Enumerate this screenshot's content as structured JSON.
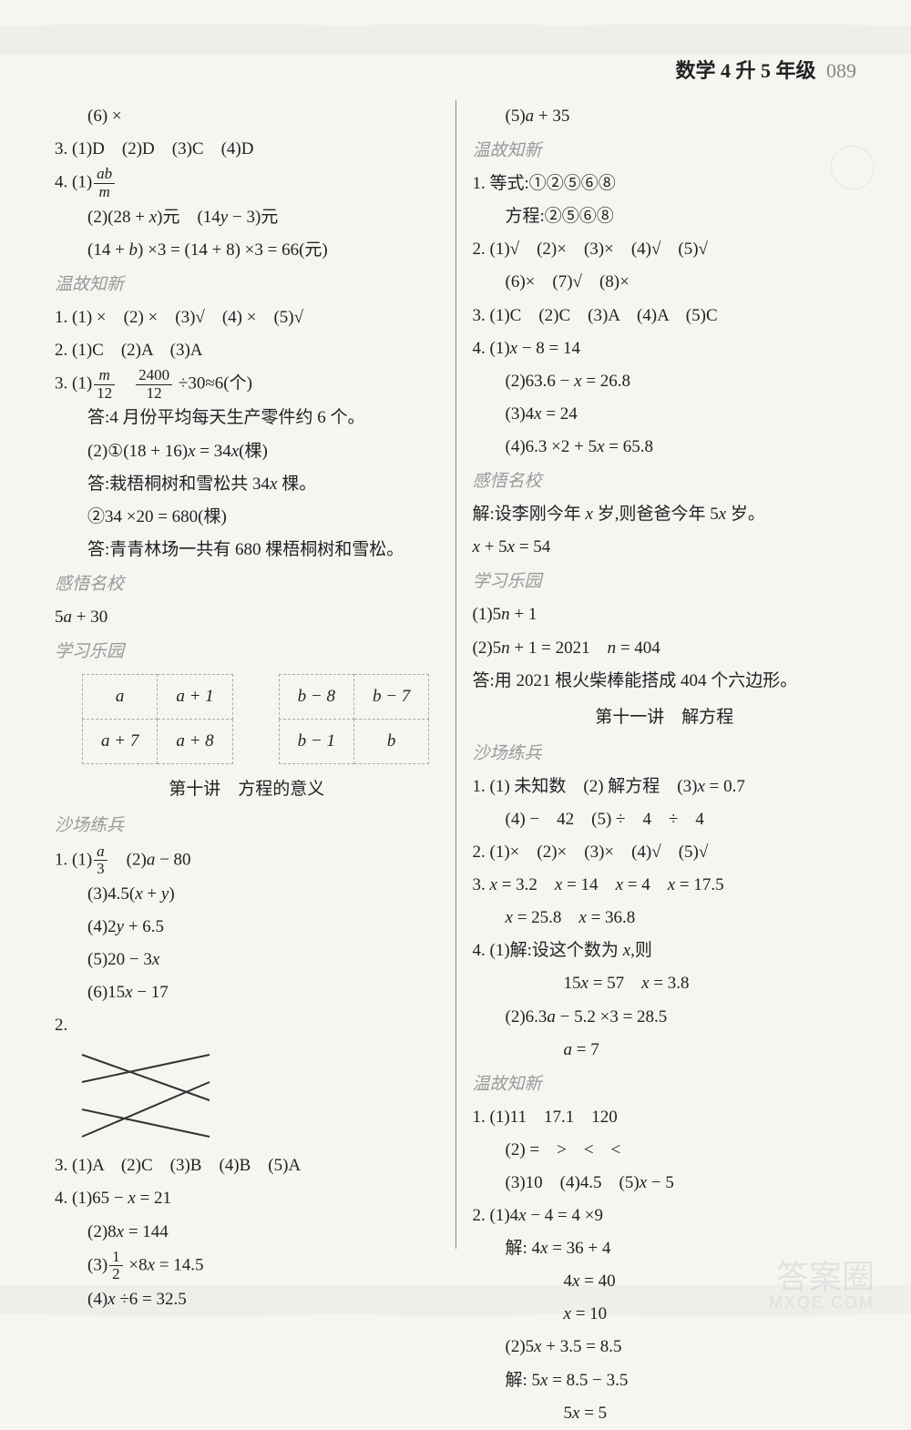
{
  "header": {
    "subject": "数学 4 升 5 年级",
    "page": "089"
  },
  "left": {
    "lines": [
      {
        "cls": "indent1",
        "html": "(6) ×"
      },
      {
        "cls": "",
        "html": "3. (1)D　(2)D　(3)C　(4)D"
      },
      {
        "cls": "",
        "html": "4. (1)<span class='frac'><span class='num it'>ab</span><span class='den it'>m</span></span>"
      },
      {
        "cls": "indent1",
        "html": "(2)(28 + <span class='it'>x</span>)元　(14<span class='it'>y</span> − 3)元"
      },
      {
        "cls": "indent1",
        "html": "(14 + <span class='it'>b</span>) ×3 = (14 + 8) ×3 = 66(元)"
      },
      {
        "cls": "section-title",
        "html": "温故知新"
      },
      {
        "cls": "",
        "html": "1. (1) ×　(2) ×　(3)√　(4) ×　(5)√"
      },
      {
        "cls": "",
        "html": "2. (1)C　(2)A　(3)A"
      },
      {
        "cls": "",
        "html": "3. (1)<span class='frac'><span class='num it'>m</span><span class='den'>12</span></span>　<span class='frac'><span class='num'>2400</span><span class='den'>12</span></span> ÷30≈6(个)"
      },
      {
        "cls": "indent1 kaiti",
        "html": "答:4 月份平均每天生产零件约 6 个。"
      },
      {
        "cls": "indent1",
        "html": "(2)①(18 + 16)<span class='it'>x</span> = 34<span class='it'>x</span>(棵)"
      },
      {
        "cls": "indent1 kaiti",
        "html": "答:栽梧桐树和雪松共 34<span class='it'>x</span> 棵。"
      },
      {
        "cls": "indent1",
        "html": "②34 ×20 = 680(棵)"
      },
      {
        "cls": "indent1 kaiti",
        "html": "答:青青林场一共有 680 棵梧桐树和雪松。"
      },
      {
        "cls": "section-title",
        "html": "感悟名校"
      },
      {
        "cls": "",
        "html": "5<span class='it'>a</span> + 30"
      },
      {
        "cls": "section-title",
        "html": "学习乐园"
      }
    ],
    "tableA": [
      [
        "a",
        "a + 1"
      ],
      [
        "a + 7",
        "a + 8"
      ]
    ],
    "tableB": [
      [
        "b − 8",
        "b − 7"
      ],
      [
        "b − 1",
        "b"
      ]
    ],
    "lesson10": "第十讲　方程的意义",
    "lines2": [
      {
        "cls": "section-title",
        "html": "沙场练兵"
      },
      {
        "cls": "",
        "html": "1. (1)<span class='frac'><span class='num it'>a</span><span class='den'>3</span></span>　(2)<span class='it'>a</span> − 80"
      },
      {
        "cls": "indent1",
        "html": "(3)4.5(<span class='it'>x</span> + <span class='it'>y</span>)"
      },
      {
        "cls": "indent1",
        "html": "(4)2<span class='it'>y</span> + 6.5"
      },
      {
        "cls": "indent1",
        "html": "(5)20 − 3<span class='it'>x</span>"
      },
      {
        "cls": "indent1",
        "html": "(6)15<span class='it'>x</span> − 17"
      },
      {
        "cls": "",
        "html": "2."
      }
    ],
    "match": {
      "width": 160,
      "height": 110,
      "lines": [
        [
          10,
          10,
          150,
          60
        ],
        [
          10,
          40,
          150,
          10
        ],
        [
          10,
          70,
          150,
          100
        ],
        [
          10,
          100,
          150,
          40
        ]
      ],
      "stroke": "#333"
    },
    "lines3": [
      {
        "cls": "",
        "html": "3. (1)A　(2)C　(3)B　(4)B　(5)A"
      },
      {
        "cls": "",
        "html": "4. (1)65 − <span class='it'>x</span> = 21"
      },
      {
        "cls": "indent1",
        "html": "(2)8<span class='it'>x</span> = 144"
      },
      {
        "cls": "indent1",
        "html": "(3)<span class='frac'><span class='num'>1</span><span class='den'>2</span></span> ×8<span class='it'>x</span> = 14.5"
      },
      {
        "cls": "indent1",
        "html": "(4)<span class='it'>x</span> ÷6 = 32.5"
      }
    ]
  },
  "right": {
    "lines": [
      {
        "cls": "indent1",
        "html": "(5)<span class='it'>a</span> + 35"
      },
      {
        "cls": "section-title",
        "html": "温故知新"
      },
      {
        "cls": "",
        "html": "1. 等式:①②⑤⑥⑧"
      },
      {
        "cls": "indent1",
        "html": "方程:②⑤⑥⑧"
      },
      {
        "cls": "",
        "html": "2. (1)√　(2)×　(3)×　(4)√　(5)√"
      },
      {
        "cls": "indent1",
        "html": "(6)×　(7)√　(8)×"
      },
      {
        "cls": "",
        "html": "3. (1)C　(2)C　(3)A　(4)A　(5)C"
      },
      {
        "cls": "",
        "html": "4. (1)<span class='it'>x</span> − 8 = 14"
      },
      {
        "cls": "indent1",
        "html": "(2)63.6 − <span class='it'>x</span> = 26.8"
      },
      {
        "cls": "indent1",
        "html": "(3)4<span class='it'>x</span> = 24"
      },
      {
        "cls": "indent1",
        "html": "(4)6.3 ×2 + 5<span class='it'>x</span> = 65.8"
      },
      {
        "cls": "section-title",
        "html": "感悟名校"
      },
      {
        "cls": "kaiti",
        "html": "解:设李刚今年 <span class='it'>x</span> 岁,则爸爸今年 5<span class='it'>x</span> 岁。"
      },
      {
        "cls": "",
        "html": "<span class='it'>x</span> + 5<span class='it'>x</span> = 54"
      },
      {
        "cls": "section-title",
        "html": "学习乐园"
      },
      {
        "cls": "",
        "html": "(1)5<span class='it'>n</span> + 1"
      },
      {
        "cls": "",
        "html": "(2)5<span class='it'>n</span> + 1 = 2021　<span class='it'>n</span> = 404"
      },
      {
        "cls": "kaiti",
        "html": "答:用 2021 根火柴棒能搭成 404 个六边形。"
      }
    ],
    "lesson11": "第十一讲　解方程",
    "lines2": [
      {
        "cls": "section-title",
        "html": "沙场练兵"
      },
      {
        "cls": "",
        "html": "1. (1) 未知数　(2) 解方程　(3)<span class='it'>x</span> = 0.7"
      },
      {
        "cls": "indent1",
        "html": "(4) −　42　(5) ÷　4　÷　4"
      },
      {
        "cls": "",
        "html": "2. (1)×　(2)×　(3)×　(4)√　(5)√"
      },
      {
        "cls": "",
        "html": "3. <span class='it'>x</span> = 3.2　<span class='it'>x</span> = 14　<span class='it'>x</span> = 4　<span class='it'>x</span> = 17.5"
      },
      {
        "cls": "indent1",
        "html": "<span class='it'>x</span> = 25.8　<span class='it'>x</span> = 36.8"
      },
      {
        "cls": "",
        "html": "4. (1)解:设这个数为 <span class='it'>x</span>,则"
      },
      {
        "cls": "indent3",
        "html": "15<span class='it'>x</span> = 57　<span class='it'>x</span> = 3.8"
      },
      {
        "cls": "indent1",
        "html": "(2)6.3<span class='it'>a</span> − 5.2 ×3 = 28.5"
      },
      {
        "cls": "indent3",
        "html": "<span class='it'>a</span> = 7"
      },
      {
        "cls": "section-title",
        "html": "温故知新"
      },
      {
        "cls": "",
        "html": "1. (1)11　17.1　120"
      },
      {
        "cls": "indent1",
        "html": "(2) =　&gt;　&lt;　&lt;"
      },
      {
        "cls": "indent1",
        "html": "(3)10　(4)4.5　(5)<span class='it'>x</span> − 5"
      },
      {
        "cls": "",
        "html": "2. (1)4<span class='it'>x</span> − 4 = 4 ×9"
      },
      {
        "cls": "indent1",
        "html": "解: 4<span class='it'>x</span> = 36 + 4"
      },
      {
        "cls": "indent3",
        "html": "4<span class='it'>x</span> = 40"
      },
      {
        "cls": "indent3",
        "html": "<span class='it'>x</span> = 10"
      },
      {
        "cls": "indent1",
        "html": "(2)5<span class='it'>x</span> + 3.5 = 8.5"
      },
      {
        "cls": "indent1",
        "html": "解: 5<span class='it'>x</span> = 8.5 − 3.5"
      },
      {
        "cls": "indent3",
        "html": "5<span class='it'>x</span> = 5"
      }
    ]
  },
  "watermark": {
    "big": "答案圈",
    "small": "MXQE.COM"
  }
}
